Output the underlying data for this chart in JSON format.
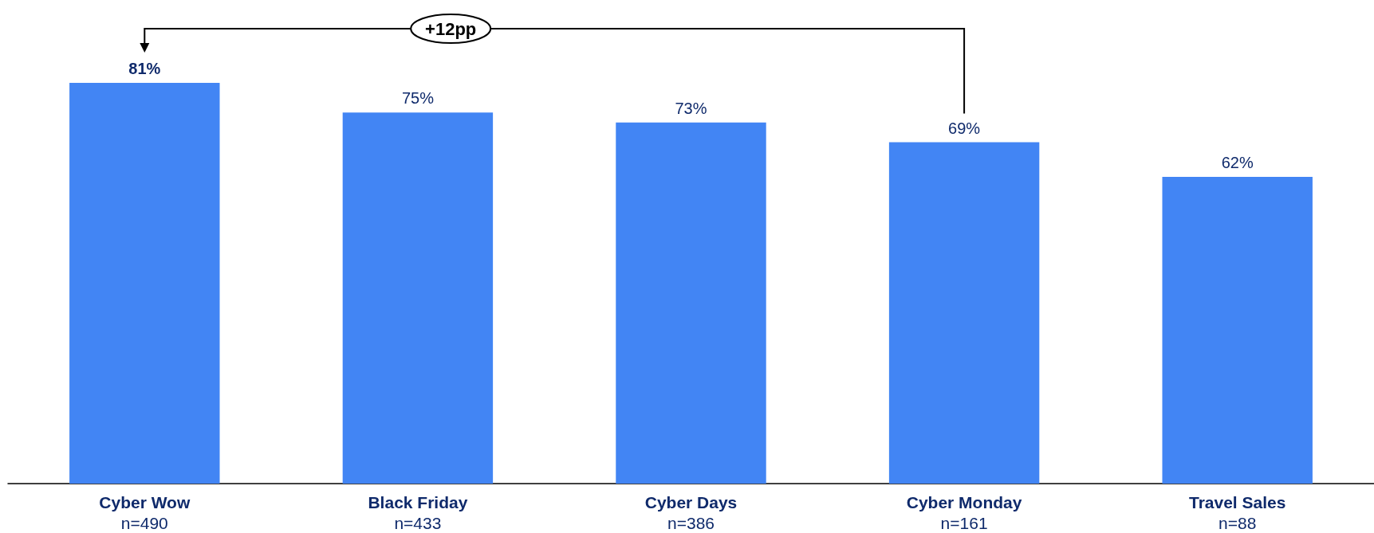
{
  "chart_data": {
    "type": "bar",
    "categories": [
      "Cyber Wow\nn=490",
      "Black Friday\nn=433",
      "Cyber Days\nn=386",
      "Cyber Monday\nn=161",
      "Travel Sales\nn=88"
    ],
    "values": [
      81,
      75,
      73,
      69,
      62
    ],
    "value_labels": [
      "81%",
      "75%",
      "73%",
      "69%",
      "62%"
    ],
    "color": "#4285f4",
    "annotations": [
      "+12pp"
    ]
  }
}
